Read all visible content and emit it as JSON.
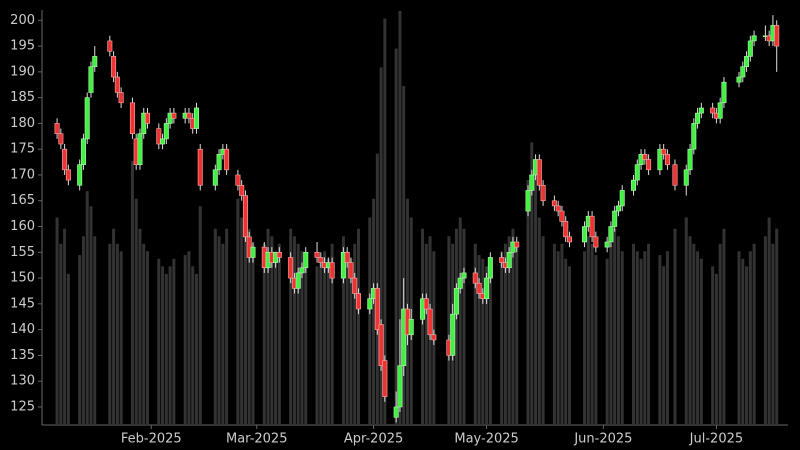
{
  "chart_data": {
    "type": "candlestick",
    "x": [
      "2025-01-07",
      "2025-01-08",
      "2025-01-09",
      "2025-01-10",
      "2025-01-13",
      "2025-01-14",
      "2025-01-15",
      "2025-01-16",
      "2025-01-17",
      "2025-01-21",
      "2025-01-22",
      "2025-01-23",
      "2025-01-24",
      "2025-01-27",
      "2025-01-28",
      "2025-01-29",
      "2025-01-30",
      "2025-01-31",
      "2025-02-03",
      "2025-02-04",
      "2025-02-05",
      "2025-02-06",
      "2025-02-07",
      "2025-02-10",
      "2025-02-11",
      "2025-02-12",
      "2025-02-13",
      "2025-02-14",
      "2025-02-18",
      "2025-02-19",
      "2025-02-20",
      "2025-02-21",
      "2025-02-24",
      "2025-02-25",
      "2025-02-26",
      "2025-02-27",
      "2025-02-28",
      "2025-03-03",
      "2025-03-04",
      "2025-03-05",
      "2025-03-06",
      "2025-03-07",
      "2025-03-10",
      "2025-03-11",
      "2025-03-12",
      "2025-03-13",
      "2025-03-14",
      "2025-03-17",
      "2025-03-18",
      "2025-03-19",
      "2025-03-20",
      "2025-03-21",
      "2025-03-24",
      "2025-03-25",
      "2025-03-26",
      "2025-03-27",
      "2025-03-28",
      "2025-03-31",
      "2025-04-01",
      "2025-04-02",
      "2025-04-03",
      "2025-04-04",
      "2025-04-07",
      "2025-04-08",
      "2025-04-09",
      "2025-04-10",
      "2025-04-11",
      "2025-04-14",
      "2025-04-15",
      "2025-04-16",
      "2025-04-17",
      "2025-04-21",
      "2025-04-22",
      "2025-04-23",
      "2025-04-24",
      "2025-04-25",
      "2025-04-28",
      "2025-04-29",
      "2025-04-30",
      "2025-05-01",
      "2025-05-02",
      "2025-05-05",
      "2025-05-06",
      "2025-05-07",
      "2025-05-08",
      "2025-05-09",
      "2025-05-12",
      "2025-05-13",
      "2025-05-14",
      "2025-05-15",
      "2025-05-16",
      "2025-05-19",
      "2025-05-20",
      "2025-05-21",
      "2025-05-22",
      "2025-05-23",
      "2025-05-27",
      "2025-05-28",
      "2025-05-29",
      "2025-05-30",
      "2025-06-02",
      "2025-06-03",
      "2025-06-04",
      "2025-06-05",
      "2025-06-06",
      "2025-06-09",
      "2025-06-10",
      "2025-06-11",
      "2025-06-12",
      "2025-06-13",
      "2025-06-16",
      "2025-06-17",
      "2025-06-18",
      "2025-06-20",
      "2025-06-23",
      "2025-06-24",
      "2025-06-25",
      "2025-06-26",
      "2025-06-27",
      "2025-06-30",
      "2025-07-01",
      "2025-07-02",
      "2025-07-03",
      "2025-07-07",
      "2025-07-08",
      "2025-07-09",
      "2025-07-10",
      "2025-07-11",
      "2025-07-14",
      "2025-07-15",
      "2025-07-16",
      "2025-07-17"
    ],
    "open": [
      180,
      178,
      175,
      171,
      168,
      172,
      177,
      186,
      191,
      196,
      193,
      189,
      186,
      184,
      177,
      172,
      178,
      182,
      179,
      176,
      177,
      180,
      182,
      181,
      182,
      181,
      179,
      175,
      168,
      171,
      174,
      175,
      170,
      168,
      166,
      158,
      154,
      156,
      152,
      155,
      153,
      155,
      154,
      150,
      148,
      151,
      152,
      155,
      154,
      153,
      152,
      153,
      150,
      155,
      153,
      150,
      147,
      144,
      146,
      148,
      141,
      134,
      123,
      125,
      133,
      144,
      139,
      142,
      146,
      144,
      139,
      138,
      135,
      143,
      148,
      150,
      151,
      149,
      147,
      146,
      150,
      154,
      153,
      152,
      155,
      157,
      163,
      167,
      170,
      173,
      168,
      165,
      164,
      163,
      161,
      158,
      157,
      160,
      162,
      158,
      156,
      157,
      160,
      163,
      164,
      167,
      169,
      172,
      174,
      173,
      171,
      175,
      174,
      172,
      168,
      171,
      175,
      180,
      182,
      183,
      182,
      181,
      184,
      188,
      189,
      191,
      193,
      196,
      197,
      197,
      196,
      199
    ],
    "high": [
      181,
      179,
      176,
      172,
      173,
      178,
      186,
      192,
      195,
      197,
      194,
      190,
      187,
      185,
      178,
      179,
      183,
      183,
      180,
      178,
      181,
      183,
      183,
      183,
      183,
      182,
      184,
      176,
      172,
      175,
      176,
      176,
      171,
      169,
      167,
      159,
      157,
      157,
      156,
      156,
      155,
      156,
      155,
      151,
      152,
      153,
      156,
      157,
      155,
      154,
      154,
      154,
      156,
      156,
      154,
      151,
      148,
      147,
      149,
      149,
      142,
      135,
      128,
      142,
      150,
      145,
      144,
      147,
      147,
      145,
      140,
      139,
      145,
      149,
      151,
      152,
      152,
      150,
      148,
      151,
      155,
      155,
      154,
      156,
      158,
      158,
      168,
      171,
      174,
      174,
      169,
      166,
      165,
      164,
      162,
      159,
      161,
      163,
      163,
      159,
      158,
      161,
      164,
      165,
      168,
      170,
      173,
      175,
      175,
      174,
      176,
      176,
      175,
      173,
      172,
      176,
      181,
      183,
      184,
      184,
      183,
      185,
      189,
      190,
      192,
      194,
      197,
      198,
      199,
      198,
      201,
      200
    ],
    "low": [
      177,
      175,
      170,
      168,
      167,
      171,
      176,
      185,
      190,
      193,
      188,
      185,
      183,
      177,
      171,
      171,
      177,
      179,
      175,
      175,
      176,
      179,
      180,
      180,
      180,
      178,
      178,
      167,
      167,
      170,
      173,
      170,
      167,
      165,
      157,
      153,
      153,
      151,
      151,
      152,
      152,
      153,
      149,
      147,
      147,
      150,
      151,
      153,
      152,
      151,
      151,
      149,
      149,
      152,
      149,
      146,
      143,
      143,
      145,
      139,
      132,
      126,
      122,
      124,
      131,
      137,
      138,
      141,
      143,
      138,
      137,
      134,
      134,
      142,
      147,
      149,
      148,
      146,
      145,
      145,
      149,
      152,
      151,
      151,
      154,
      155,
      162,
      166,
      169,
      167,
      164,
      163,
      162,
      160,
      157,
      156,
      156,
      159,
      157,
      155,
      155,
      156,
      159,
      162,
      163,
      166,
      168,
      171,
      172,
      170,
      170,
      173,
      171,
      167,
      166,
      170,
      174,
      179,
      181,
      181,
      180,
      180,
      183,
      187,
      188,
      190,
      192,
      195,
      196,
      195,
      195,
      190
    ],
    "close": [
      178,
      176,
      171,
      169,
      172,
      177,
      185,
      191,
      193,
      194,
      189,
      186,
      184,
      178,
      172,
      178,
      182,
      180,
      176,
      177,
      180,
      182,
      181,
      182,
      181,
      179,
      183,
      168,
      171,
      174,
      175,
      171,
      168,
      166,
      158,
      154,
      156,
      152,
      155,
      153,
      155,
      154,
      150,
      148,
      151,
      152,
      155,
      154,
      153,
      152,
      153,
      150,
      155,
      153,
      150,
      147,
      144,
      146,
      148,
      140,
      133,
      127,
      125,
      133,
      144,
      139,
      142,
      146,
      144,
      139,
      138,
      135,
      143,
      148,
      150,
      151,
      149,
      147,
      146,
      150,
      154,
      153,
      152,
      155,
      157,
      156,
      167,
      170,
      173,
      168,
      165,
      164,
      163,
      161,
      158,
      157,
      160,
      162,
      158,
      156,
      157,
      160,
      163,
      164,
      167,
      169,
      172,
      174,
      173,
      171,
      175,
      174,
      172,
      168,
      171,
      175,
      180,
      182,
      183,
      182,
      181,
      184,
      188,
      189,
      191,
      193,
      196,
      197,
      197,
      196,
      199,
      195
    ],
    "volume": [
      55,
      48,
      52,
      40,
      45,
      50,
      62,
      58,
      50,
      48,
      52,
      48,
      46,
      70,
      60,
      52,
      48,
      46,
      44,
      42,
      40,
      42,
      44,
      45,
      46,
      42,
      40,
      58,
      52,
      50,
      48,
      52,
      60,
      55,
      58,
      52,
      48,
      48,
      52,
      50,
      46,
      48,
      52,
      50,
      48,
      46,
      44,
      42,
      44,
      46,
      44,
      48,
      50,
      46,
      44,
      48,
      52,
      55,
      60,
      72,
      95,
      108,
      100,
      110,
      90,
      60,
      55,
      52,
      48,
      50,
      46,
      50,
      48,
      52,
      55,
      52,
      48,
      45,
      44,
      42,
      44,
      46,
      48,
      50,
      52,
      48,
      65,
      75,
      68,
      55,
      50,
      48,
      46,
      48,
      44,
      42,
      46,
      50,
      48,
      45,
      44,
      48,
      52,
      50,
      46,
      48,
      46,
      44,
      46,
      48,
      45,
      42,
      46,
      52,
      55,
      50,
      48,
      46,
      44,
      42,
      40,
      48,
      52,
      46,
      44,
      42,
      46,
      48,
      50,
      55,
      48,
      52
    ],
    "xlim": [
      "2025-01-03",
      "2025-07-20"
    ],
    "xticks": [
      {
        "value": "2025-02-01",
        "label": "Feb-2025"
      },
      {
        "value": "2025-03-01",
        "label": "Mar-2025"
      },
      {
        "value": "2025-04-01",
        "label": "Apr-2025"
      },
      {
        "value": "2025-05-01",
        "label": "May-2025"
      },
      {
        "value": "2025-06-01",
        "label": "Jun-2025"
      },
      {
        "value": "2025-07-01",
        "label": "Jul-2025"
      }
    ],
    "ylim": [
      121.5,
      202
    ],
    "yticks": [
      125,
      130,
      135,
      140,
      145,
      150,
      155,
      160,
      165,
      170,
      175,
      180,
      185,
      190,
      195,
      200
    ],
    "up_color": "#44ee44",
    "down_color": "#ee3333",
    "volume_color": "#333333"
  }
}
